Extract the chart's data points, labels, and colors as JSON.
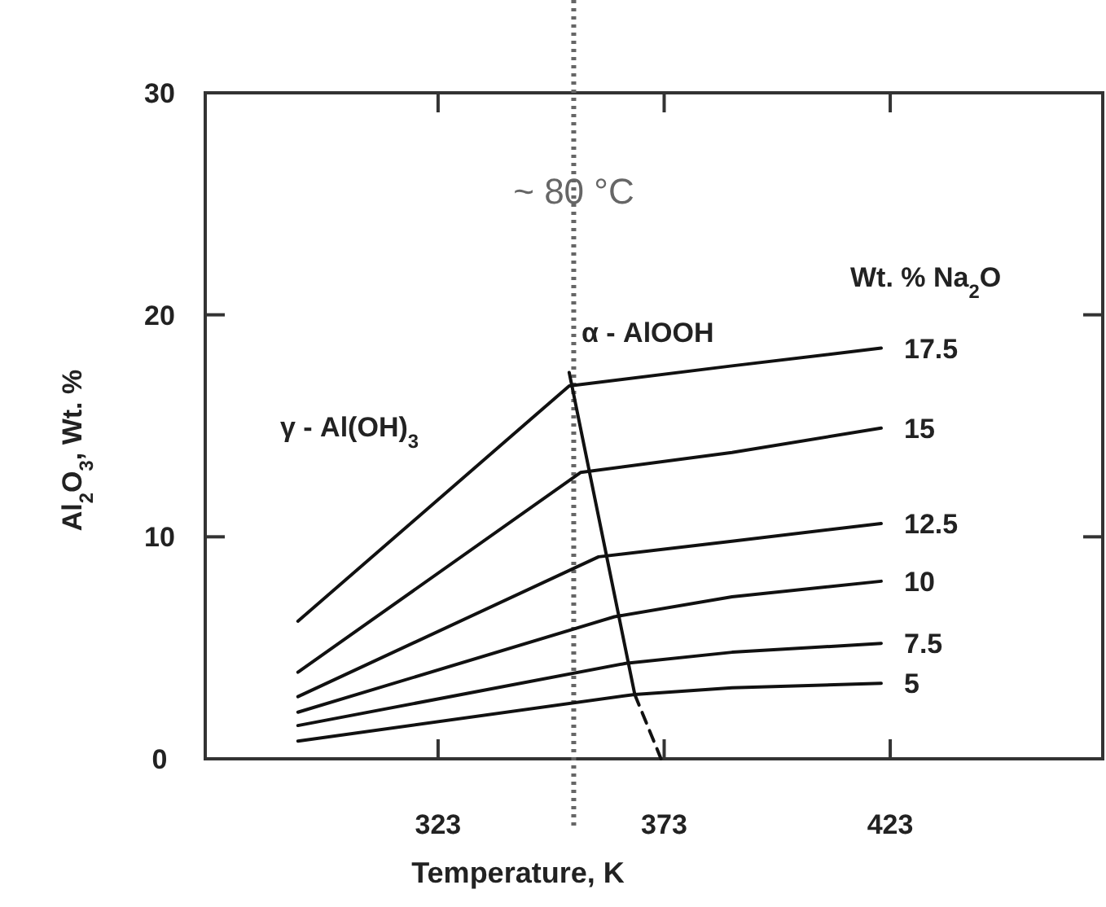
{
  "chart_data": {
    "type": "line",
    "xlabel": "Temperature, K",
    "ylabel": "Al$_{2}$O$_{3}$, Wt. %",
    "legend_title": "Wt. % Na$_{2}$O",
    "xlim": [
      271.5,
      470
    ],
    "ylim": [
      0,
      30
    ],
    "xticks": [
      323,
      373,
      423
    ],
    "yticks": [
      0,
      10,
      20,
      30
    ],
    "grid": false,
    "marker": "none",
    "series": [
      {
        "name": "17.5",
        "color": "#111111",
        "x": [
          292,
          352,
          388,
          421
        ],
        "values": [
          6.2,
          16.8,
          17.7,
          18.5
        ]
      },
      {
        "name": "15",
        "color": "#111111",
        "x": [
          292,
          354.5,
          388,
          421
        ],
        "values": [
          3.9,
          12.9,
          13.8,
          14.9
        ]
      },
      {
        "name": "12.5",
        "color": "#111111",
        "x": [
          292,
          358.5,
          388,
          421
        ],
        "values": [
          2.8,
          9.1,
          9.8,
          10.6
        ]
      },
      {
        "name": "10",
        "color": "#111111",
        "x": [
          292,
          362,
          388,
          421
        ],
        "values": [
          2.1,
          6.4,
          7.3,
          8.0
        ]
      },
      {
        "name": "7.5",
        "color": "#111111",
        "x": [
          292,
          364.5,
          388,
          421
        ],
        "values": [
          1.5,
          4.3,
          4.8,
          5.2
        ]
      },
      {
        "name": "5",
        "color": "#111111",
        "x": [
          292,
          366.5,
          388,
          421
        ],
        "values": [
          0.8,
          2.9,
          3.2,
          3.4
        ]
      },
      {
        "color": "#111111",
        "x": [
          352,
          366.5
        ],
        "values": [
          17.4,
          2.9
        ]
      },
      {
        "color": "#111111",
        "line_style": "dashed",
        "x": [
          366.5,
          372.3
        ],
        "values": [
          2.9,
          0
        ]
      }
    ],
    "ref_lines": [
      {
        "axis": "x",
        "value": 353,
        "label": "~ 80 °C",
        "color": "#666666",
        "line_style": "dotted"
      }
    ],
    "annotations": [
      "γ - Al(OH)$_{3}$",
      "α - AlOOH"
    ]
  }
}
